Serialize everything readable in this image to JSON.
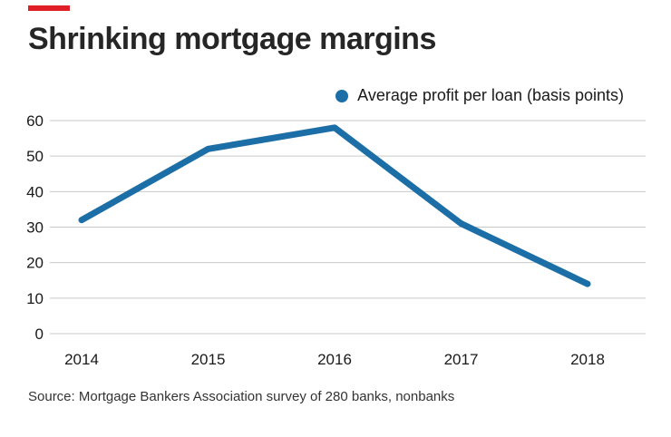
{
  "header": {
    "title": "Shrinking mortgage margins"
  },
  "legend": {
    "label": "Average profit per loan (basis points)"
  },
  "source": {
    "text": "Source: Mortgage Bankers Association survey of 280 banks, nonbanks"
  },
  "colors": {
    "accent_red": "#e01e25",
    "line_blue": "#1b6ea6",
    "grid_gray": "#c9c9c9",
    "axis_text": "#1a1a1a"
  },
  "chart_data": {
    "type": "line",
    "title": "Shrinking mortgage margins",
    "categories": [
      "2014",
      "2015",
      "2016",
      "2017",
      "2018"
    ],
    "series": [
      {
        "name": "Average profit per loan (basis points)",
        "values": [
          32,
          52,
          58,
          31,
          14
        ]
      }
    ],
    "xlabel": "",
    "ylabel": "Average profit per loan (basis points)",
    "ylim": [
      0,
      60
    ],
    "ytick_step": 10,
    "grid": "horizontal",
    "legend_position": "top",
    "source": "Source: Mortgage Bankers Association survey of 280 banks, nonbanks"
  }
}
